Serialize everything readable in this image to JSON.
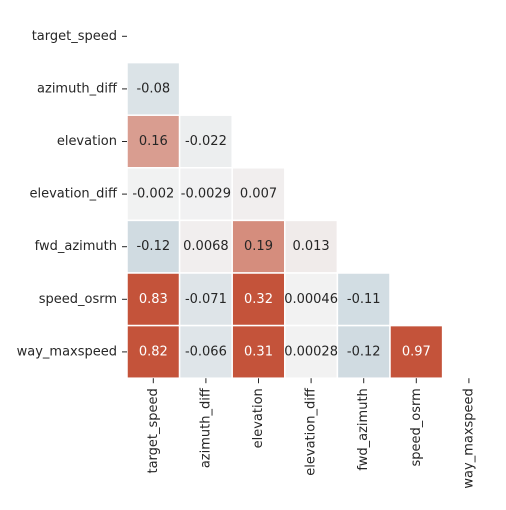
{
  "chart_data": {
    "type": "heatmap",
    "variant": "lower-triangle-correlation-matrix",
    "labels": [
      "target_speed",
      "azimuth_diff",
      "elevation",
      "elevation_diff",
      "fwd_azimuth",
      "speed_osrm",
      "way_maxspeed"
    ],
    "cells": [
      {
        "row": 1,
        "col": 0,
        "value": -0.08,
        "label": "-0.08"
      },
      {
        "row": 2,
        "col": 0,
        "value": 0.16,
        "label": "0.16"
      },
      {
        "row": 2,
        "col": 1,
        "value": -0.022,
        "label": "-0.022"
      },
      {
        "row": 3,
        "col": 0,
        "value": -0.002,
        "label": "-0.002"
      },
      {
        "row": 3,
        "col": 1,
        "value": -0.0029,
        "label": "-0.0029"
      },
      {
        "row": 3,
        "col": 2,
        "value": 0.007,
        "label": "0.007"
      },
      {
        "row": 4,
        "col": 0,
        "value": -0.12,
        "label": "-0.12"
      },
      {
        "row": 4,
        "col": 1,
        "value": 0.0068,
        "label": "0.0068"
      },
      {
        "row": 4,
        "col": 2,
        "value": 0.19,
        "label": "0.19"
      },
      {
        "row": 4,
        "col": 3,
        "value": 0.013,
        "label": "0.013"
      },
      {
        "row": 5,
        "col": 0,
        "value": 0.83,
        "label": "0.83"
      },
      {
        "row": 5,
        "col": 1,
        "value": -0.071,
        "label": "-0.071"
      },
      {
        "row": 5,
        "col": 2,
        "value": 0.32,
        "label": "0.32"
      },
      {
        "row": 5,
        "col": 3,
        "value": 0.00046,
        "label": "0.00046"
      },
      {
        "row": 5,
        "col": 4,
        "value": -0.11,
        "label": "-0.11"
      },
      {
        "row": 6,
        "col": 0,
        "value": 0.82,
        "label": "0.82"
      },
      {
        "row": 6,
        "col": 1,
        "value": -0.066,
        "label": "-0.066"
      },
      {
        "row": 6,
        "col": 2,
        "value": 0.31,
        "label": "0.31"
      },
      {
        "row": 6,
        "col": 3,
        "value": 0.00028,
        "label": "0.00028"
      },
      {
        "row": 6,
        "col": 4,
        "value": -0.12,
        "label": "-0.12"
      },
      {
        "row": 6,
        "col": 5,
        "value": 0.97,
        "label": "0.97"
      }
    ],
    "colormap": {
      "type": "diverging",
      "negative": "#9cb8c8",
      "center": "#f2f2f2",
      "positive": "#c4533a",
      "range": [
        -0.3,
        0.3
      ]
    },
    "text_color_dark": "#262626",
    "text_color_light": "#ffffff",
    "cell_border_color": "#ffffff",
    "title": "",
    "xlabel": "",
    "ylabel": "",
    "legend": "none",
    "grid": false
  }
}
